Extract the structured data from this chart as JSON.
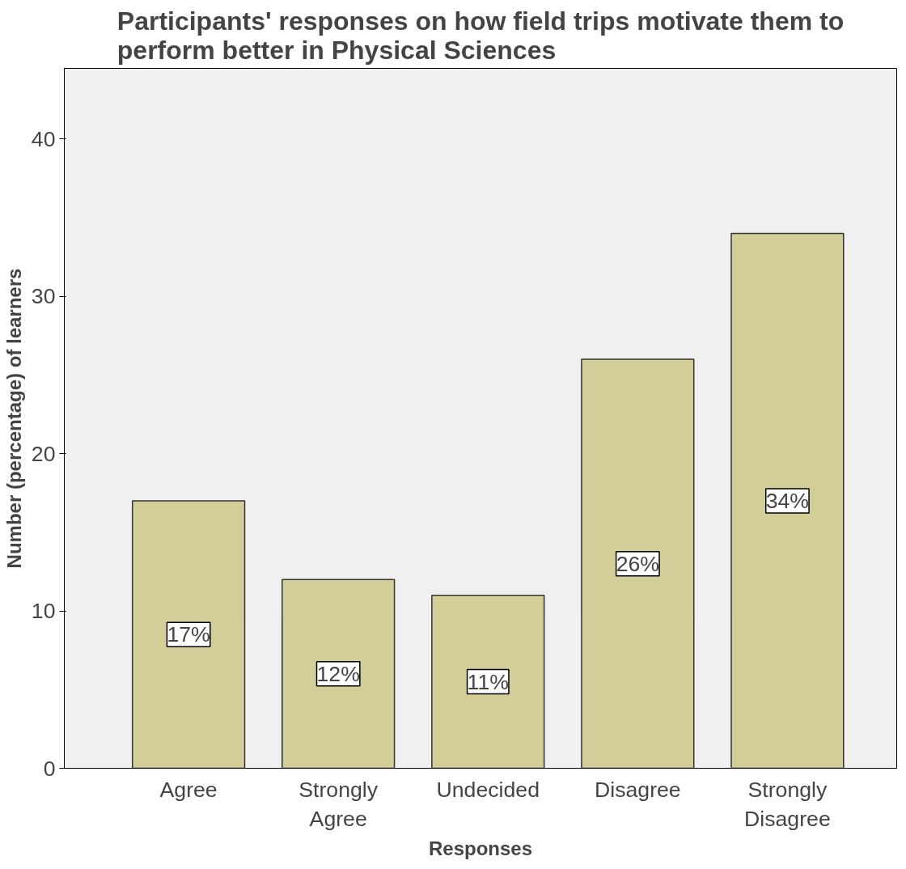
{
  "chart_data": {
    "type": "bar",
    "title": "Participants' responses on how field trips motivate them to\nperform better in Physical Sciences",
    "xlabel": "Responses",
    "ylabel": "Number (percentage) of learners",
    "categories": [
      "Agree",
      "Strongly\nAgree",
      "Undecided",
      "Disagree",
      "Strongly\nDisagree"
    ],
    "values": [
      17,
      12,
      11,
      26,
      34
    ],
    "value_labels": [
      "17%",
      "12%",
      "11%",
      "26%",
      "34%"
    ],
    "color": "#d3ce98",
    "ylim": [
      0,
      44.5
    ],
    "yticks": [
      0,
      10,
      20,
      30,
      40
    ],
    "grid": false
  }
}
